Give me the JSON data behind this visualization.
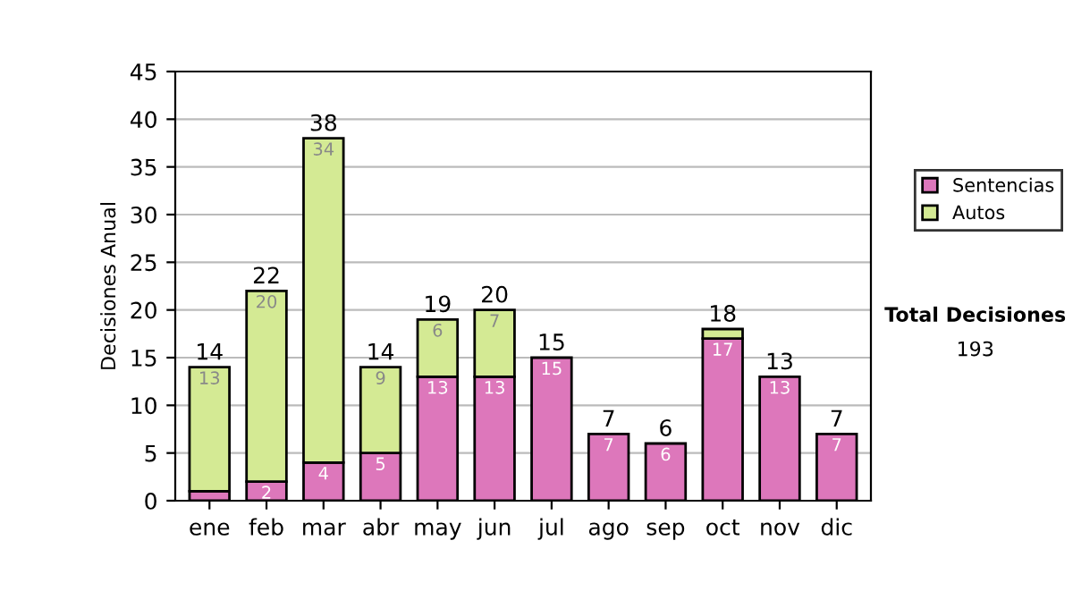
{
  "chart_data": {
    "type": "bar",
    "stacked": true,
    "ylabel": "Decisiones Anual",
    "categories": [
      "ene",
      "feb",
      "mar",
      "abr",
      "may",
      "jun",
      "jul",
      "ago",
      "sep",
      "oct",
      "nov",
      "dic"
    ],
    "series": [
      {
        "name": "Sentencias",
        "color": "#dd77bb",
        "values": [
          1,
          2,
          4,
          5,
          13,
          13,
          15,
          7,
          6,
          17,
          13,
          7
        ],
        "value_labels": [
          null,
          "2",
          "4",
          "5",
          "13",
          "13",
          "15",
          "7",
          "6",
          "17",
          "13",
          "7"
        ]
      },
      {
        "name": "Autos",
        "color": "#d4ea94",
        "values": [
          13,
          20,
          34,
          9,
          6,
          7,
          null,
          null,
          null,
          1,
          null,
          null
        ],
        "value_labels": [
          "13",
          "20",
          "34",
          "9",
          "6",
          "7",
          null,
          null,
          null,
          null,
          null,
          null
        ]
      }
    ],
    "totals": [
      "14",
      "22",
      "38",
      "14",
      "19",
      "20",
      "15",
      "7",
      "6",
      "18",
      "13",
      "7"
    ],
    "ylim": [
      0,
      45
    ],
    "yticks": [
      0,
      5,
      10,
      15,
      20,
      25,
      30,
      35,
      40,
      45
    ],
    "grid": "y",
    "legend": "right",
    "annotations": [
      "Total Decisiones",
      "193"
    ]
  }
}
